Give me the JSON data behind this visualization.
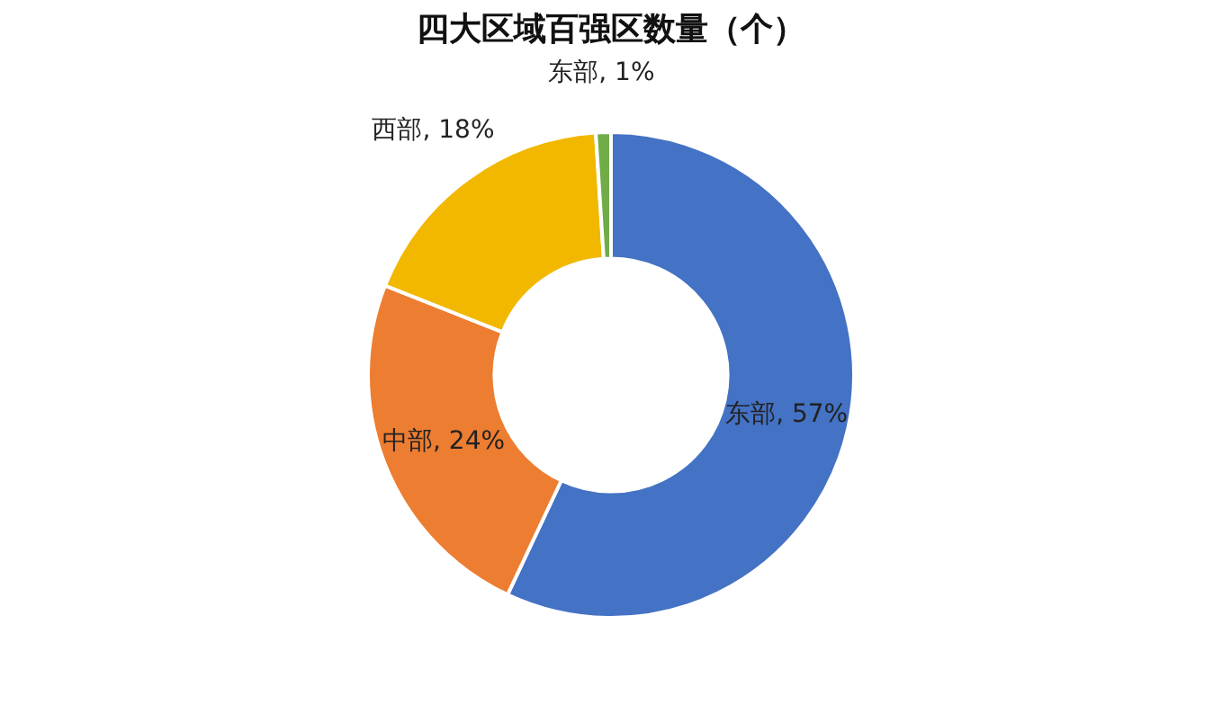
{
  "chart_data": {
    "type": "donut",
    "title": "四大区域百强区数量（个）",
    "categories": [
      "东部",
      "中部",
      "西部",
      "东部"
    ],
    "values": [
      57,
      24,
      18,
      1
    ],
    "colors": [
      "#4472c4",
      "#ed7d31",
      "#f2b800",
      "#70ad47"
    ],
    "value_labels": [
      "57%",
      "24%",
      "18%",
      "1%"
    ],
    "legend": false
  }
}
